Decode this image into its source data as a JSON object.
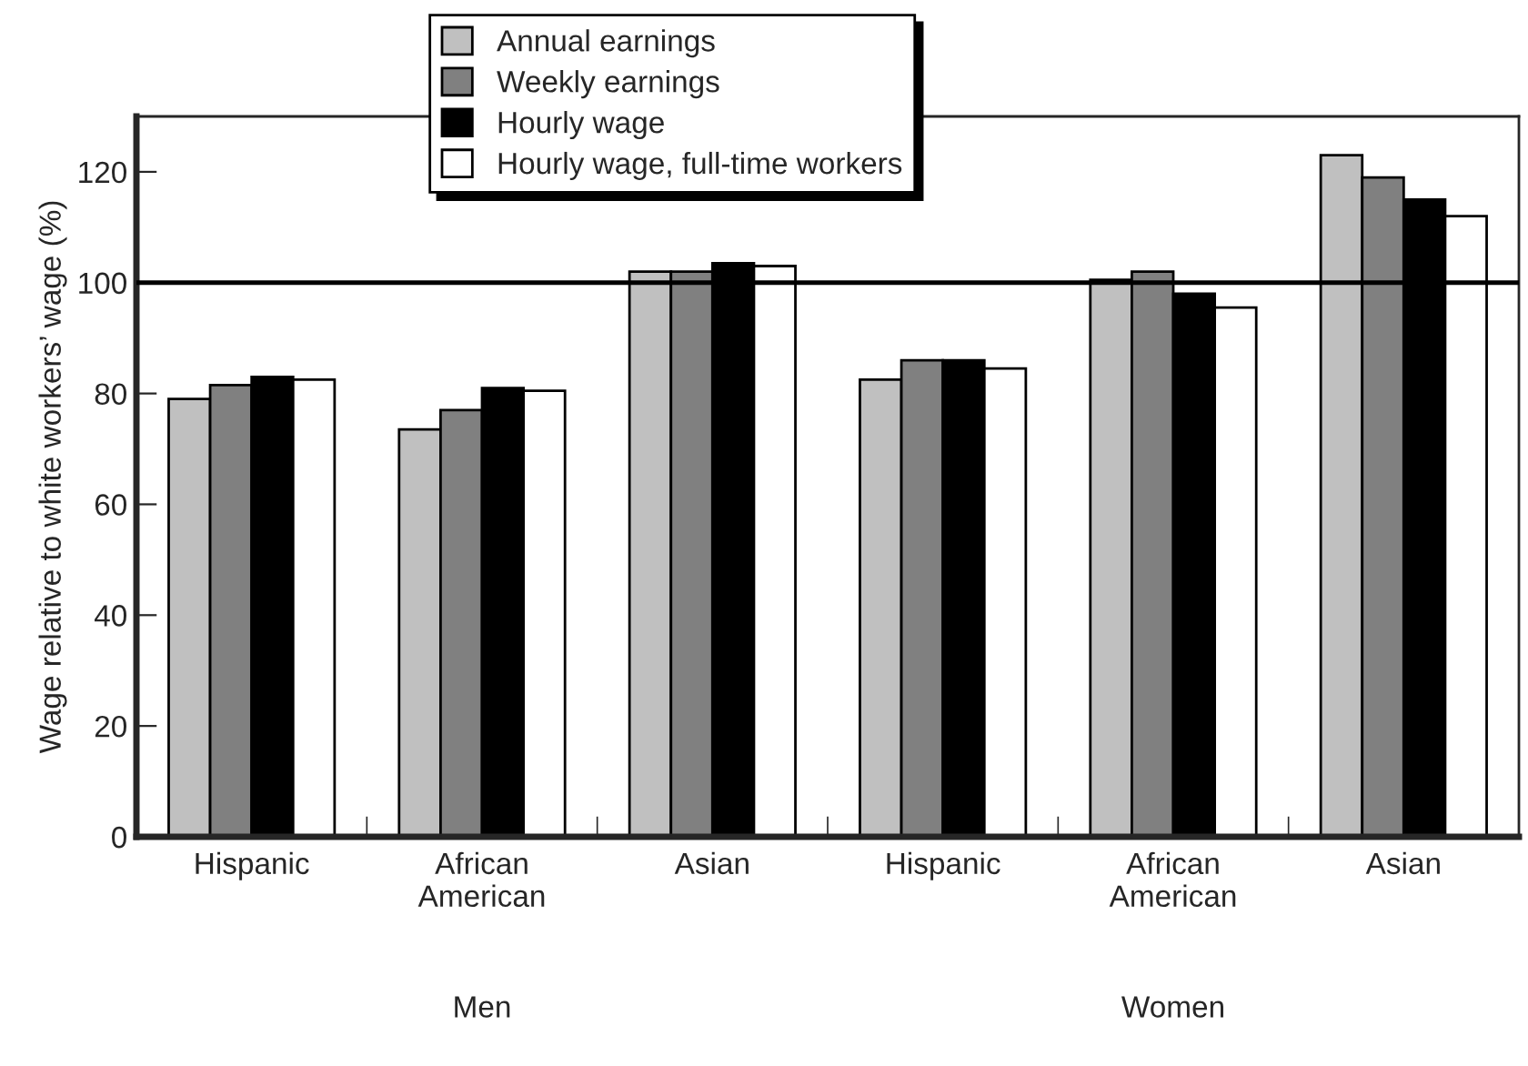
{
  "chart_data": {
    "type": "bar",
    "ylabel": "Wage relative to white workers’ wage (%)",
    "categories": [
      "Hispanic",
      "African\nAmerican",
      "Asian",
      "Hispanic",
      "African\nAmerican",
      "Asian"
    ],
    "series": [
      {
        "name": "Annual earnings",
        "color": "#c0c0c0",
        "values": [
          79,
          73.5,
          102,
          82.5,
          100.5,
          123
        ]
      },
      {
        "name": "Weekly earnings",
        "color": "#808080",
        "values": [
          81.5,
          77,
          102,
          86,
          102,
          119
        ]
      },
      {
        "name": "Hourly wage",
        "color": "#000000",
        "values": [
          83,
          81,
          103.5,
          86,
          98,
          115
        ]
      },
      {
        "name": "Hourly wage, full-time workers",
        "color": "#ffffff",
        "values": [
          82.5,
          80.5,
          103,
          84.5,
          95.5,
          112
        ]
      }
    ],
    "ylim": [
      0,
      130
    ],
    "yticks": [
      0,
      20,
      40,
      60,
      80,
      100,
      120
    ],
    "ref_lines": [
      {
        "axis": "y",
        "value": 100,
        "color": "#000000"
      }
    ],
    "annotations": [
      "Men",
      "Women"
    ],
    "legend": "top",
    "grid": false
  }
}
